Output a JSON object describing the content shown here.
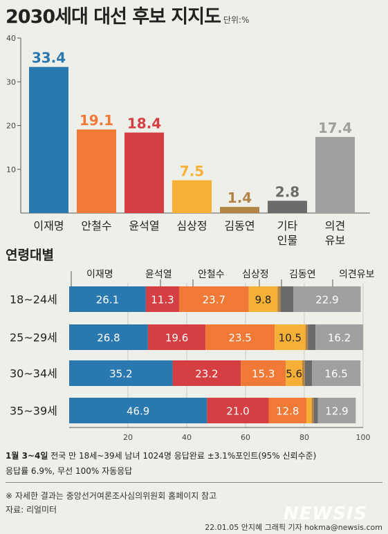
{
  "title": "2030세대 대선 후보 지지도",
  "unit": "단위:%",
  "colors": {
    "이재명": "#2a78b0",
    "안철수": "#ef7935",
    "윤석열": "#d53f43",
    "심상정": "#f5b035",
    "김동연": "#b48446",
    "기타 인물": "#6b6b6b",
    "의견유보": "#a0a0a0"
  },
  "chart_data": [
    {
      "type": "bar",
      "categories": [
        "이재명",
        "안철수",
        "윤석열",
        "심상정",
        "김동연",
        "기타 인물",
        "의견 유보"
      ],
      "values": [
        33.4,
        19.1,
        18.4,
        7.5,
        1.4,
        2.8,
        17.4
      ],
      "yticks": [
        10,
        20,
        30,
        40
      ],
      "ylim": [
        0,
        40
      ],
      "grid": false
    },
    {
      "type": "bar",
      "orientation": "horizontal",
      "stacked": true,
      "title": "연령대별",
      "categories": [
        "18~24세",
        "25~29세",
        "30~34세",
        "35~39세"
      ],
      "legend": [
        "이재명",
        "윤석열",
        "안철수",
        "심상정",
        "김동연",
        "의견유보"
      ],
      "series": [
        {
          "name": "이재명",
          "values": [
            26.1,
            26.8,
            35.2,
            46.9
          ]
        },
        {
          "name": "윤석열",
          "values": [
            11.3,
            19.6,
            23.2,
            21.0
          ]
        },
        {
          "name": "안철수",
          "values": [
            23.7,
            23.5,
            15.3,
            12.8
          ]
        },
        {
          "name": "심상정",
          "values": [
            9.8,
            10.5,
            5.6,
            1.8
          ]
        },
        {
          "name": "김동연",
          "values": [
            1.0,
            0.8,
            0.9,
            0.7
          ]
        },
        {
          "name": "기타 인물",
          "values": [
            4.4,
            2.6,
            2.4,
            1.4
          ]
        },
        {
          "name": "의견유보",
          "values": [
            22.9,
            16.2,
            16.5,
            12.9
          ]
        }
      ],
      "xticks": [
        20,
        40,
        60,
        80,
        100
      ],
      "xlim": [
        0,
        100
      ]
    }
  ],
  "footer": {
    "survey_date": "1월 3~4일",
    "survey_rest": " 전국 만 18세~39세 남녀 1024명 응답완료 ±3.1%포인트(95% 신뢰수준)",
    "response_rate": "응답률 6.9%, 무선 100% 자동응답",
    "reference": "※ 자세한 결과는 중앙선거여론조사심의위원회 홈페이지 참고",
    "source": "자료: 리얼미터",
    "credit": "22.01.05 안지혜 그래픽 기자 hokma@newsis.com",
    "logo_text": "NEWSIS"
  }
}
